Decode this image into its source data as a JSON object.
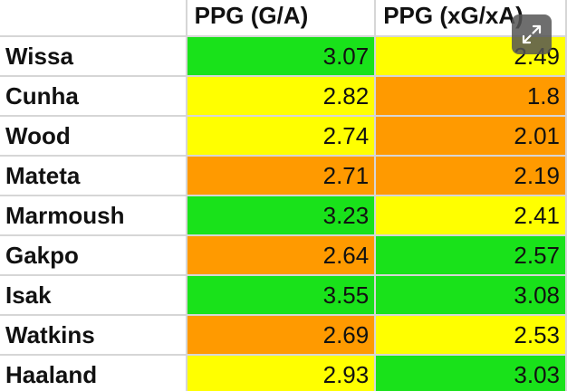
{
  "table": {
    "headers": [
      "",
      "PPG (G/A)",
      "PPG (xG/xA)"
    ],
    "rows": [
      {
        "name": "Wissa",
        "ga": "3.07",
        "xg": "2.49"
      },
      {
        "name": "Cunha",
        "ga": "2.82",
        "xg": "1.8"
      },
      {
        "name": "Wood",
        "ga": "2.74",
        "xg": "2.01"
      },
      {
        "name": "Mateta",
        "ga": "2.71",
        "xg": "2.19"
      },
      {
        "name": "Marmoush",
        "ga": "3.23",
        "xg": "2.41"
      },
      {
        "name": "Gakpo",
        "ga": "2.64",
        "xg": "2.57"
      },
      {
        "name": "Isak",
        "ga": "3.55",
        "xg": "3.08"
      },
      {
        "name": "Watkins",
        "ga": "2.69",
        "xg": "2.53"
      },
      {
        "name": "Haaland",
        "ga": "2.93",
        "xg": "3.03"
      }
    ]
  },
  "cell_colors": {
    "green": "#19e21a",
    "yellow": "#ffff00",
    "orange": "#ff9a00"
  },
  "expand_button": {
    "icon": "expand-arrows-icon"
  }
}
